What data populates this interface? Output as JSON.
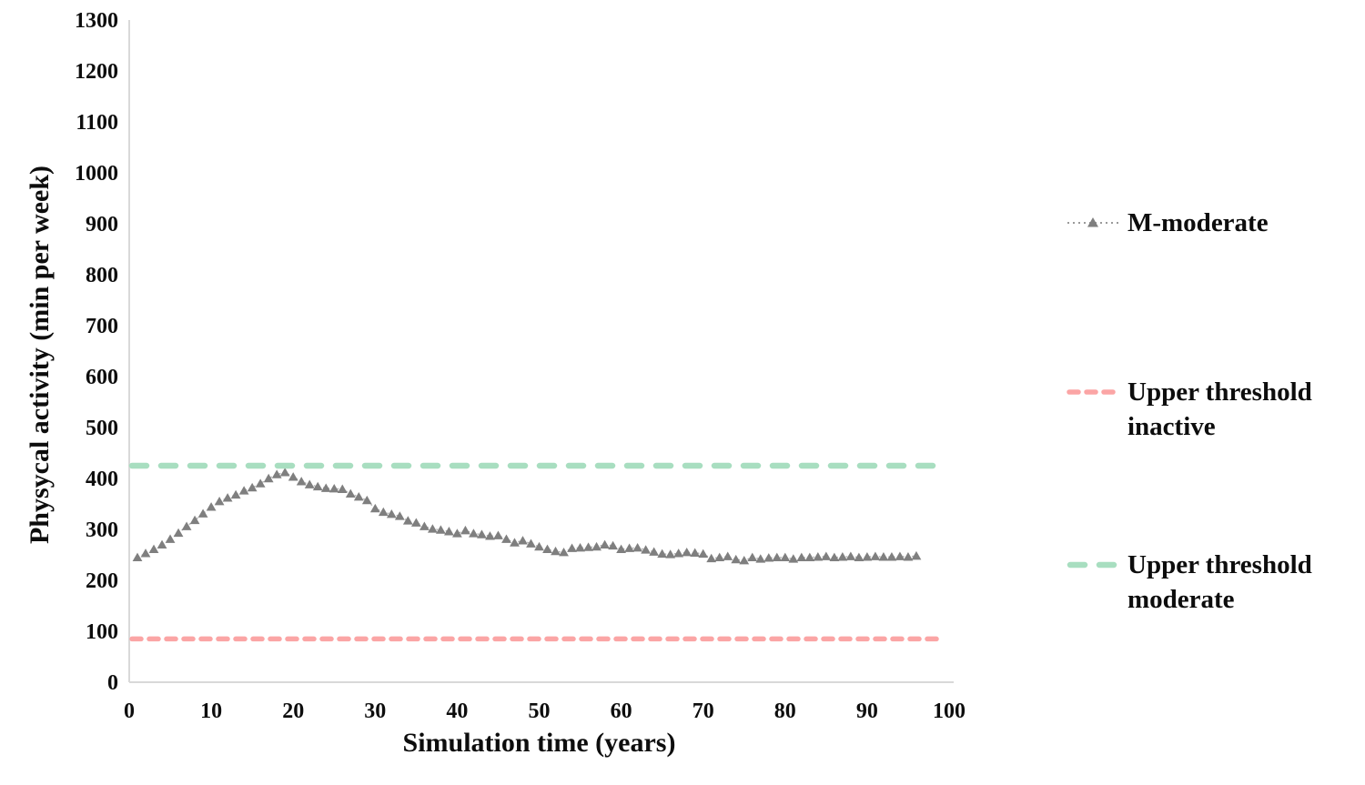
{
  "figure": {
    "background": "#ffffff",
    "text_color": "#0d0d0d",
    "axis_line_color": "#d9d9d9"
  },
  "chart_data": {
    "type": "line",
    "title": "",
    "xlabel": "Simulation time (years)",
    "ylabel": "Physycal activity (min per week)",
    "xlim": [
      0,
      100
    ],
    "ylim": [
      0,
      1300
    ],
    "x_ticks": [
      0,
      10,
      20,
      30,
      40,
      50,
      60,
      70,
      80,
      90,
      100
    ],
    "y_ticks": [
      0,
      100,
      200,
      300,
      400,
      500,
      600,
      700,
      800,
      900,
      1000,
      1100,
      1200,
      1300
    ],
    "grid": false,
    "legend_position": "right-outside",
    "series": [
      {
        "name": "M-moderate",
        "type": "scatter",
        "marker": "triangle",
        "color": "#7f7f7f",
        "connector": "dotted",
        "connector_color": "#b0b0b0",
        "x": [
          1,
          2,
          3,
          4,
          5,
          6,
          7,
          8,
          9,
          10,
          11,
          12,
          13,
          14,
          15,
          16,
          17,
          18,
          19,
          20,
          21,
          22,
          23,
          24,
          25,
          26,
          27,
          28,
          29,
          30,
          31,
          32,
          33,
          34,
          35,
          36,
          37,
          38,
          39,
          40,
          41,
          42,
          43,
          44,
          45,
          46,
          47,
          48,
          49,
          50,
          51,
          52,
          53,
          54,
          55,
          56,
          57,
          58,
          59,
          60,
          61,
          62,
          63,
          64,
          65,
          66,
          67,
          68,
          69,
          70,
          71,
          72,
          73,
          74,
          75,
          76,
          77,
          78,
          79,
          80,
          81,
          82,
          83,
          84,
          85,
          86,
          87,
          88,
          89,
          90,
          91,
          92,
          93,
          94,
          95,
          96
        ],
        "y": [
          245,
          253,
          261,
          270,
          281,
          293,
          306,
          318,
          331,
          344,
          355,
          362,
          368,
          376,
          382,
          390,
          400,
          408,
          412,
          403,
          394,
          388,
          384,
          381,
          380,
          379,
          370,
          364,
          357,
          341,
          334,
          330,
          326,
          317,
          313,
          306,
          301,
          299,
          296,
          292,
          298,
          292,
          290,
          287,
          288,
          281,
          274,
          278,
          272,
          266,
          261,
          257,
          255,
          263,
          264,
          265,
          266,
          270,
          268,
          261,
          263,
          264,
          260,
          256,
          252,
          251,
          253,
          255,
          254,
          252,
          243,
          245,
          247,
          241,
          239,
          245,
          242,
          244,
          245,
          245,
          242,
          245,
          245,
          246,
          247,
          245,
          246,
          247,
          245,
          246,
          247,
          246,
          246,
          247,
          246,
          248
        ]
      },
      {
        "name": "Upper threshold inactive",
        "type": "hline",
        "y": 85,
        "color": "#fba5a5",
        "style": "dashed-short"
      },
      {
        "name": "Upper threshold moderate",
        "type": "hline",
        "y": 425,
        "color": "#a8dec0",
        "style": "dashed-long"
      }
    ]
  },
  "legend": {
    "items": [
      {
        "label": "M-moderate",
        "swatch": "dotted-triangle",
        "color": "#7f7f7f",
        "line_color": "#9a9a9a"
      },
      {
        "label": "Upper threshold inactive",
        "swatch": "dashed-short",
        "color": "#fba5a5"
      },
      {
        "label": "Upper threshold moderate",
        "swatch": "dashed-long",
        "color": "#a8dec0"
      }
    ]
  }
}
